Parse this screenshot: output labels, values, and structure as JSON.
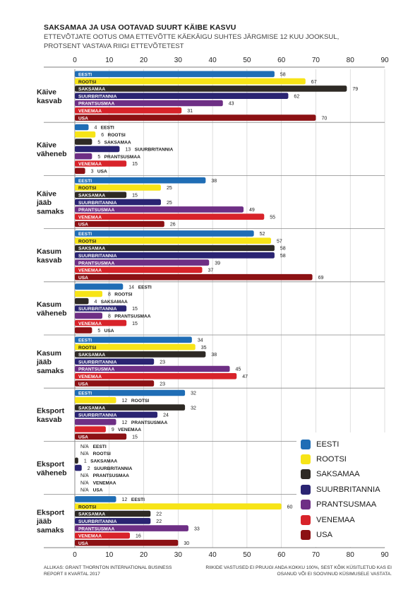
{
  "title": "SAKSAMAA JA USA OOTAVAD SUURT KÄIBE KASVU",
  "subtitle": "ETTEVÕTJATE OOTUS OMA ETTEVÕTTE KÄEKÄIGU SUHTES JÄRGMISE 12 KUU JOOKSUL, PROTSENT VASTAVA RIIGI ETTEVÕTETEST",
  "source": "ALLIKAS: GRANT THORNTON INTERNATIONAL BUSINESS REPORT II KVARTAL 2017",
  "footnote": "RIIKIDE VASTUSED EI PRUUGI ANDA KOKKU 100%, SEST KÕIK KÜSITLETUD KAS EI OSANUD VÕI EI SOOVINUD KÜSIMUSELE VASTATA.",
  "colors": {
    "EESTI": "#1f6db5",
    "ROOTSI": "#f7e417",
    "SAKSAMAA": "#2e2a25",
    "SUURBRITANNIA": "#2a2472",
    "PRANTSUSMAA": "#6e2f85",
    "VENEMAA": "#d8232a",
    "USA": "#8c1114"
  },
  "legend": [
    {
      "label": "EESTI",
      "color": "#1f6db5"
    },
    {
      "label": "ROOTSI",
      "color": "#f7e417"
    },
    {
      "label": "SAKSAMAA",
      "color": "#2e2a25"
    },
    {
      "label": "SUURBRITANNIA",
      "color": "#2a2472"
    },
    {
      "label": "PRANTSUSMAA",
      "color": "#6e2f85"
    },
    {
      "label": "VENEMAA",
      "color": "#d8232a"
    },
    {
      "label": "USA",
      "color": "#8c1114"
    }
  ],
  "chart_data": {
    "type": "bar",
    "orientation": "horizontal",
    "xlim": [
      0,
      90
    ],
    "xticks": [
      0,
      10,
      20,
      30,
      40,
      50,
      60,
      70,
      80,
      90
    ],
    "series_names": [
      "EESTI",
      "ROOTSI",
      "SAKSAMAA",
      "SUURBRITANNIA",
      "PRANTSUSMAA",
      "VENEMAA",
      "USA"
    ],
    "groups": [
      {
        "label": [
          "Käive",
          "kasvab"
        ],
        "values": [
          58,
          67,
          79,
          62,
          43,
          31,
          70
        ]
      },
      {
        "label": [
          "Käive",
          "väheneb"
        ],
        "values": [
          4,
          6,
          5,
          13,
          5,
          15,
          3
        ]
      },
      {
        "label": [
          "Käive",
          "jääb",
          "samaks"
        ],
        "values": [
          38,
          25,
          15,
          25,
          49,
          55,
          26
        ]
      },
      {
        "label": [
          "Kasum",
          "kasvab"
        ],
        "values": [
          52,
          57,
          58,
          58,
          39,
          37,
          69
        ]
      },
      {
        "label": [
          "Kasum",
          "väheneb"
        ],
        "values": [
          14,
          8,
          4,
          15,
          8,
          15,
          5
        ]
      },
      {
        "label": [
          "Kasum",
          "jääb",
          "samaks"
        ],
        "values": [
          34,
          35,
          38,
          23,
          45,
          47,
          23
        ]
      },
      {
        "label": [
          "Eksport",
          "kasvab"
        ],
        "values": [
          32,
          12,
          32,
          24,
          12,
          9,
          15
        ]
      },
      {
        "label": [
          "Eksport",
          "väheneb"
        ],
        "values": [
          "N/A",
          "N/A",
          1,
          2,
          "N/A",
          "N/A",
          "N/A"
        ]
      },
      {
        "label": [
          "Eksport",
          "jääb",
          "samaks"
        ],
        "values": [
          12,
          60,
          22,
          22,
          33,
          16,
          30
        ]
      }
    ]
  }
}
